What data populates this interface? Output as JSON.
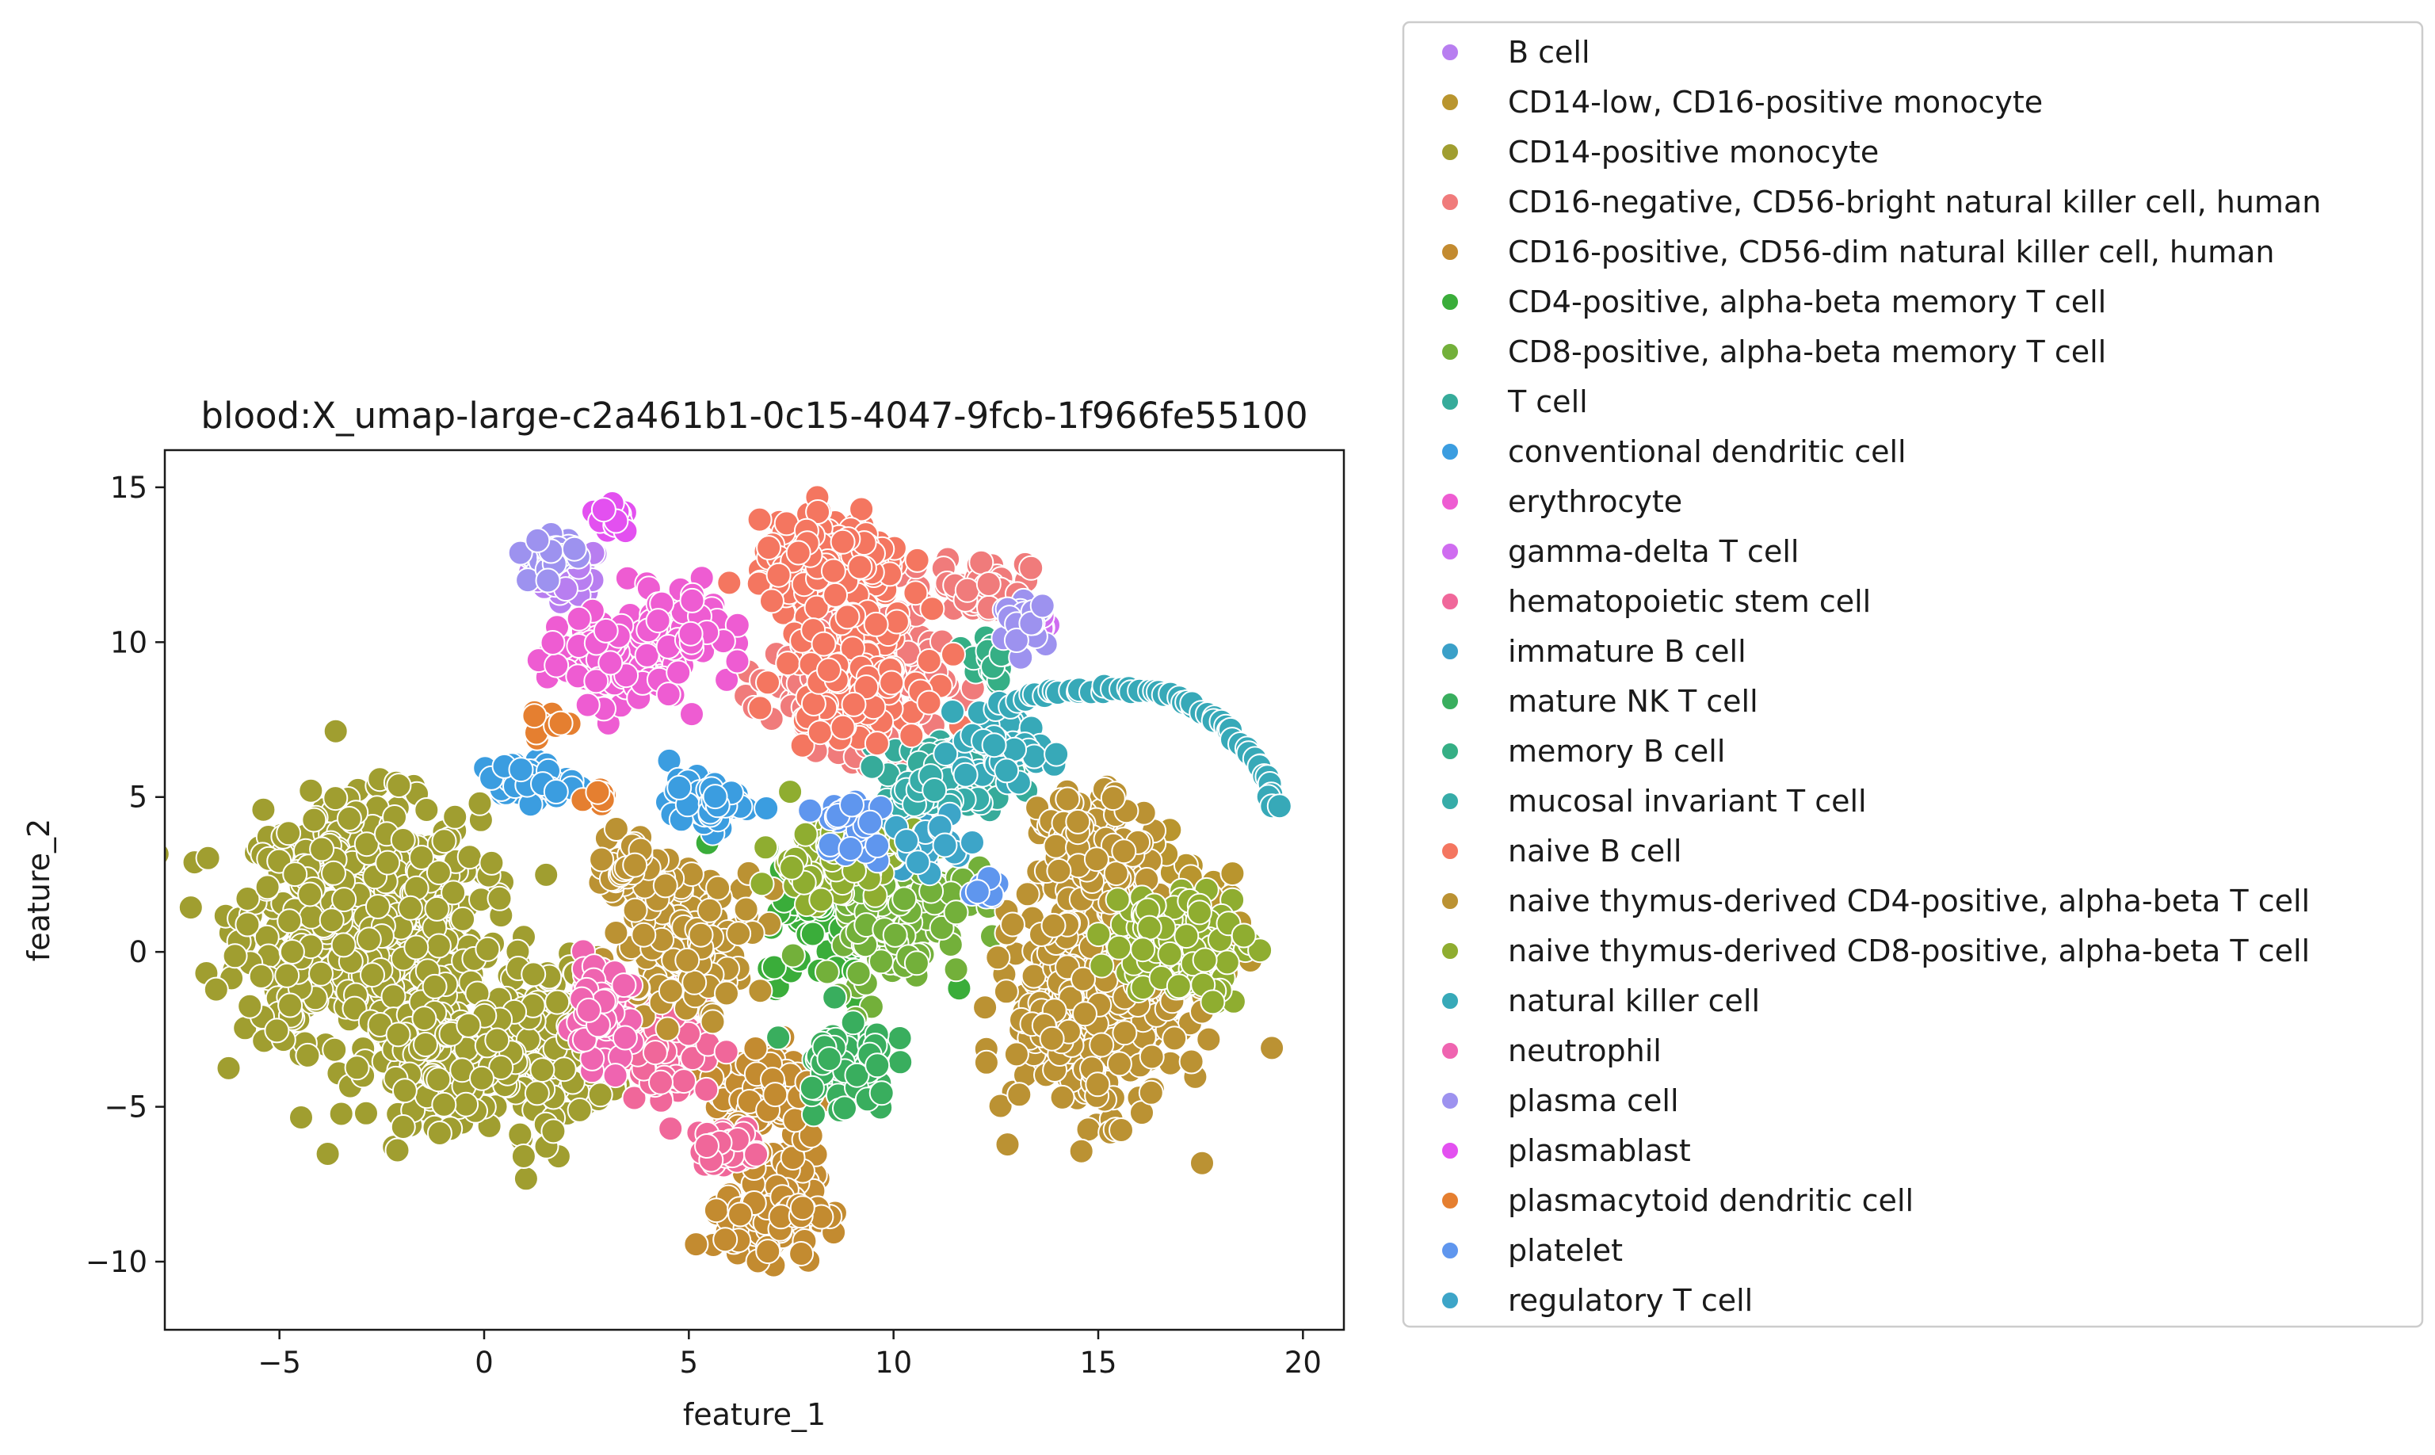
{
  "chart_data": {
    "type": "scatter",
    "title": "blood:X_umap-large-c2a461b1-0c15-4047-9fcb-1f966fe55100",
    "xlabel": "feature_1",
    "ylabel": "feature_2",
    "xlim": [
      -7.8,
      21.0
    ],
    "ylim": [
      -12.2,
      16.2
    ],
    "xticks": [
      -5,
      0,
      5,
      10,
      15,
      20
    ],
    "yticks": [
      -10,
      -5,
      0,
      5,
      10,
      15
    ],
    "xtick_labels": [
      "−5",
      "0",
      "5",
      "10",
      "15",
      "20"
    ],
    "ytick_labels": [
      "−10",
      "−5",
      "0",
      "5",
      "10",
      "15"
    ],
    "grid": false,
    "legend_position": "outside-right",
    "marker_edge_color": "#ffffff",
    "series": [
      {
        "name": "B cell",
        "color": "#b87ef0",
        "clusters": [
          [
            2.0,
            12.3,
            0.8,
            0.7,
            60
          ]
        ]
      },
      {
        "name": "CD14-low, CD16-positive monocyte",
        "color": "#b9952e",
        "clusters": [
          [
            17.2,
            0.5,
            1.3,
            2.5,
            70
          ]
        ]
      },
      {
        "name": "CD14-positive monocyte",
        "color": "#a09e30",
        "clusters": [
          [
            -3.0,
            1.0,
            2.6,
            3.4,
            700
          ],
          [
            1.4,
            -3.0,
            1.5,
            2.5,
            200
          ],
          [
            -1.0,
            -3.5,
            1.6,
            1.8,
            150
          ]
        ]
      },
      {
        "name": "CD16-negative, CD56-bright natural killer cell, human",
        "color": "#f07b7b",
        "clusters": [
          [
            9.0,
            9.0,
            1.8,
            2.2,
            220
          ],
          [
            12.2,
            11.8,
            1.0,
            0.9,
            60
          ]
        ]
      },
      {
        "name": "CD16-positive, CD56-dim natural killer cell, human",
        "color": "#c38b30",
        "clusters": [
          [
            7.0,
            -8.2,
            1.0,
            1.5,
            180
          ],
          [
            7.0,
            -4.5,
            1.3,
            1.5,
            110
          ]
        ]
      },
      {
        "name": "CD4-positive, alpha-beta memory T cell",
        "color": "#3aad3a",
        "clusters": [
          [
            8.8,
            1.2,
            1.8,
            2.0,
            90
          ]
        ]
      },
      {
        "name": "CD8-positive, alpha-beta memory T cell",
        "color": "#73b03a",
        "clusters": [
          [
            10.0,
            1.5,
            1.6,
            2.2,
            140
          ]
        ]
      },
      {
        "name": "T cell",
        "color": "#36ab9a",
        "clusters": [
          [
            11.5,
            5.8,
            1.5,
            1.0,
            70
          ]
        ]
      },
      {
        "name": "conventional dendritic cell",
        "color": "#3b9de0",
        "clusters": [
          [
            1.0,
            5.5,
            1.0,
            0.6,
            60
          ],
          [
            5.5,
            4.8,
            0.9,
            0.7,
            50
          ]
        ]
      },
      {
        "name": "erythrocyte",
        "color": "#ee5cd2",
        "clusters": [
          [
            3.2,
            9.5,
            1.5,
            1.3,
            150
          ],
          [
            5.0,
            10.5,
            0.9,
            1.2,
            60
          ]
        ]
      },
      {
        "name": "gamma-delta T cell",
        "color": "#cf6cf0",
        "clusters": [
          [
            13.3,
            10.7,
            0.4,
            0.6,
            25
          ]
        ]
      },
      {
        "name": "hematopoietic stem cell",
        "color": "#f0679a",
        "clusters": [
          [
            4.5,
            -3.0,
            1.0,
            1.6,
            90
          ],
          [
            6.0,
            -6.3,
            0.7,
            0.6,
            50
          ]
        ]
      },
      {
        "name": "immature B cell",
        "color": "#3aa0c8",
        "clusters": [
          [
            10.0,
            4.0,
            0.6,
            0.8,
            20
          ]
        ]
      },
      {
        "name": "mature NK T cell",
        "color": "#39ae5e",
        "clusters": [
          [
            8.8,
            -3.5,
            1.0,
            1.5,
            60
          ]
        ]
      },
      {
        "name": "memory B cell",
        "color": "#35af85",
        "clusters": [
          [
            12.3,
            9.5,
            0.5,
            1.0,
            20
          ]
        ]
      },
      {
        "name": "mucosal invariant T cell",
        "color": "#36aca8",
        "clusters": [
          [
            11.0,
            5.0,
            0.8,
            0.6,
            25
          ]
        ]
      },
      {
        "name": "naive B cell",
        "color": "#f47660",
        "clusters": [
          [
            8.5,
            12.5,
            1.6,
            1.2,
            260
          ],
          [
            9.0,
            9.0,
            1.5,
            1.8,
            150
          ]
        ]
      },
      {
        "name": "naive thymus-derived CD4-positive, alpha-beta T cell",
        "color": "#bb9233",
        "clusters": [
          [
            15.0,
            -1.5,
            1.8,
            3.2,
            480
          ],
          [
            14.8,
            3.5,
            1.1,
            1.5,
            120
          ],
          [
            5.0,
            0.5,
            1.5,
            2.0,
            160
          ],
          [
            3.6,
            2.8,
            0.8,
            0.9,
            50
          ]
        ]
      },
      {
        "name": "naive thymus-derived CD8-positive, alpha-beta T cell",
        "color": "#8fad30",
        "clusters": [
          [
            17.0,
            0.3,
            1.5,
            1.6,
            120
          ],
          [
            8.5,
            3.0,
            1.5,
            1.3,
            80
          ]
        ]
      },
      {
        "name": "natural killer cell",
        "color": "#37a9b8",
        "clusters": [
          [
            12.5,
            6.5,
            1.3,
            0.8,
            60
          ]
        ]
      },
      {
        "name": "neutrophil",
        "color": "#ef64b0",
        "clusters": [
          [
            2.8,
            -2.0,
            0.7,
            1.4,
            60
          ]
        ]
      },
      {
        "name": "plasma cell",
        "color": "#9d92ef",
        "clusters": [
          [
            1.6,
            12.8,
            0.6,
            0.6,
            40
          ],
          [
            13.2,
            10.6,
            0.5,
            0.6,
            25
          ]
        ]
      },
      {
        "name": "plasmablast",
        "color": "#e350f0",
        "clusters": [
          [
            3.2,
            14.0,
            0.4,
            0.5,
            20
          ]
        ]
      },
      {
        "name": "plasmacytoid dendritic cell",
        "color": "#e57f30",
        "clusters": [
          [
            1.5,
            7.3,
            0.5,
            0.4,
            15
          ],
          [
            2.8,
            5.2,
            0.3,
            0.3,
            8
          ]
        ]
      },
      {
        "name": "platelet",
        "color": "#5f96ee",
        "clusters": [
          [
            9.0,
            4.0,
            1.0,
            1.2,
            25
          ],
          [
            12.3,
            2.0,
            0.4,
            0.5,
            10
          ]
        ]
      },
      {
        "name": "regulatory T cell",
        "color": "#3da5c8",
        "clusters": [
          [
            11.0,
            3.5,
            1.0,
            1.0,
            20
          ]
        ]
      }
    ],
    "nk_arc": {
      "series": "natural killer cell",
      "points": [
        [
          12.5,
          7.9
        ],
        [
          13.5,
          8.3
        ],
        [
          14.5,
          8.5
        ],
        [
          15.5,
          8.5
        ],
        [
          16.5,
          8.4
        ],
        [
          17.3,
          8.0
        ],
        [
          18.0,
          7.4
        ],
        [
          18.6,
          6.6
        ],
        [
          19.1,
          5.6
        ],
        [
          19.4,
          4.4
        ]
      ]
    }
  }
}
